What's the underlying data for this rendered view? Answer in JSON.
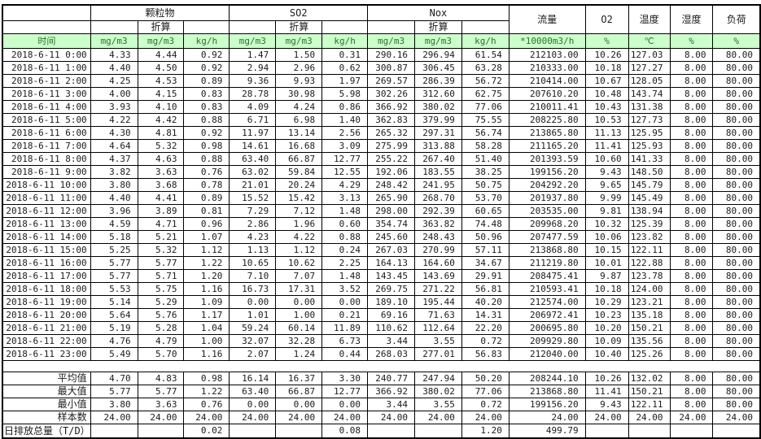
{
  "colors": {
    "header_bg": "#ccffcc",
    "header_text": "#267326",
    "grid": "#000000"
  },
  "header": {
    "time_label": "时间",
    "groups": [
      {
        "label": "颗粒物",
        "sub": "折算"
      },
      {
        "label": "SO2",
        "sub": "折算"
      },
      {
        "label": "Nox",
        "sub": "折算"
      }
    ],
    "singles": [
      {
        "label": "流量"
      },
      {
        "label": "O2"
      },
      {
        "label": "温度"
      },
      {
        "label": "湿度"
      },
      {
        "label": "负荷"
      }
    ],
    "units": [
      "mg/m3",
      "mg/m3",
      "kg/h",
      "mg/m3",
      "mg/m3",
      "kg/h",
      "mg/m3",
      "mg/m3",
      "kg/h",
      "*10000m3/h",
      "%",
      "℃",
      "%",
      "%"
    ]
  },
  "rows": [
    {
      "time": "2018-6-11 0:00",
      "values": [
        "4.33",
        "4.44",
        "0.92",
        "1.47",
        "1.50",
        "0.31",
        "290.16",
        "296.94",
        "61.54",
        "212103.00",
        "10.26",
        "127.03",
        "8.00",
        "80.00"
      ]
    },
    {
      "time": "2018-6-11 1:00",
      "values": [
        "4.40",
        "4.50",
        "0.92",
        "2.94",
        "2.96",
        "0.62",
        "300.87",
        "306.45",
        "63.28",
        "210333.00",
        "10.18",
        "127.27",
        "8.00",
        "80.00"
      ]
    },
    {
      "time": "2018-6-11 2:00",
      "values": [
        "4.25",
        "4.53",
        "0.89",
        "9.36",
        "9.93",
        "1.97",
        "269.57",
        "286.39",
        "56.72",
        "210414.00",
        "10.67",
        "128.05",
        "8.00",
        "80.00"
      ]
    },
    {
      "time": "2018-6-11 3:00",
      "values": [
        "4.00",
        "4.15",
        "0.83",
        "28.78",
        "30.98",
        "5.98",
        "302.26",
        "312.60",
        "62.75",
        "207610.20",
        "10.48",
        "143.74",
        "8.00",
        "80.00"
      ]
    },
    {
      "time": "2018-6-11 4:00",
      "values": [
        "3.93",
        "4.10",
        "0.83",
        "4.09",
        "4.24",
        "0.86",
        "366.92",
        "380.02",
        "77.06",
        "210011.41",
        "10.43",
        "131.38",
        "8.00",
        "80.00"
      ]
    },
    {
      "time": "2018-6-11 5:00",
      "values": [
        "4.22",
        "4.42",
        "0.88",
        "6.71",
        "6.98",
        "1.40",
        "362.83",
        "379.99",
        "75.55",
        "208225.80",
        "10.53",
        "127.73",
        "8.00",
        "80.00"
      ]
    },
    {
      "time": "2018-6-11 6:00",
      "values": [
        "4.30",
        "4.81",
        "0.92",
        "11.97",
        "13.14",
        "2.56",
        "265.32",
        "297.31",
        "56.74",
        "213865.80",
        "11.13",
        "125.95",
        "8.00",
        "80.00"
      ]
    },
    {
      "time": "2018-6-11 7:00",
      "values": [
        "4.64",
        "5.32",
        "0.98",
        "14.61",
        "16.68",
        "3.09",
        "275.99",
        "313.88",
        "58.28",
        "211165.20",
        "11.41",
        "125.93",
        "8.00",
        "80.00"
      ]
    },
    {
      "time": "2018-6-11 8:00",
      "values": [
        "4.37",
        "4.63",
        "0.88",
        "63.40",
        "66.87",
        "12.77",
        "255.22",
        "267.40",
        "51.40",
        "201393.59",
        "10.60",
        "141.33",
        "8.00",
        "80.00"
      ]
    },
    {
      "time": "2018-6-11 9:00",
      "values": [
        "3.82",
        "3.63",
        "0.76",
        "63.02",
        "59.84",
        "12.55",
        "192.06",
        "183.55",
        "38.25",
        "199156.20",
        "9.43",
        "148.50",
        "8.00",
        "80.00"
      ]
    },
    {
      "time": "2018-6-11 10:00",
      "values": [
        "3.80",
        "3.68",
        "0.78",
        "21.01",
        "20.24",
        "4.29",
        "248.42",
        "241.95",
        "50.75",
        "204292.20",
        "9.65",
        "145.79",
        "8.00",
        "80.00"
      ]
    },
    {
      "time": "2018-6-11 11:00",
      "values": [
        "4.40",
        "4.41",
        "0.89",
        "15.52",
        "15.42",
        "3.13",
        "265.90",
        "268.70",
        "53.70",
        "201937.80",
        "9.99",
        "145.49",
        "8.00",
        "80.00"
      ]
    },
    {
      "time": "2018-6-11 12:00",
      "values": [
        "3.96",
        "3.89",
        "0.81",
        "7.29",
        "7.12",
        "1.48",
        "298.00",
        "292.39",
        "60.65",
        "203535.00",
        "9.81",
        "138.94",
        "8.00",
        "80.00"
      ]
    },
    {
      "time": "2018-6-11 13:00",
      "values": [
        "4.59",
        "4.71",
        "0.96",
        "2.86",
        "1.96",
        "0.60",
        "354.74",
        "363.82",
        "74.48",
        "209968.20",
        "10.32",
        "125.39",
        "8.00",
        "80.00"
      ]
    },
    {
      "time": "2018-6-11 14:00",
      "values": [
        "5.18",
        "5.21",
        "1.07",
        "4.23",
        "4.22",
        "0.88",
        "245.60",
        "248.43",
        "50.96",
        "207477.59",
        "10.06",
        "123.82",
        "8.00",
        "80.00"
      ]
    },
    {
      "time": "2018-6-11 15:00",
      "values": [
        "5.25",
        "5.32",
        "1.12",
        "1.13",
        "1.12",
        "0.24",
        "267.03",
        "270.99",
        "57.11",
        "213868.80",
        "10.15",
        "122.11",
        "8.00",
        "80.00"
      ]
    },
    {
      "time": "2018-6-11 16:00",
      "values": [
        "5.77",
        "5.77",
        "1.22",
        "10.65",
        "10.62",
        "2.25",
        "164.13",
        "164.60",
        "34.67",
        "211219.80",
        "10.01",
        "122.88",
        "8.00",
        "80.00"
      ]
    },
    {
      "time": "2018-6-11 17:00",
      "values": [
        "5.77",
        "5.71",
        "1.20",
        "7.10",
        "7.07",
        "1.48",
        "143.45",
        "143.69",
        "29.91",
        "208475.41",
        "9.87",
        "123.78",
        "8.00",
        "80.00"
      ]
    },
    {
      "time": "2018-6-11 18:00",
      "values": [
        "5.53",
        "5.75",
        "1.16",
        "16.73",
        "17.31",
        "3.52",
        "269.75",
        "271.22",
        "56.81",
        "210593.41",
        "10.18",
        "124.00",
        "8.00",
        "80.00"
      ]
    },
    {
      "time": "2018-6-11 19:00",
      "values": [
        "5.14",
        "5.29",
        "1.09",
        "0.00",
        "0.00",
        "0.00",
        "189.10",
        "195.44",
        "40.20",
        "212574.00",
        "10.29",
        "123.21",
        "8.00",
        "80.00"
      ]
    },
    {
      "time": "2018-6-11 20:00",
      "values": [
        "5.64",
        "5.76",
        "1.17",
        "1.01",
        "1.00",
        "0.21",
        "69.16",
        "71.63",
        "14.31",
        "206972.41",
        "10.23",
        "135.18",
        "8.00",
        "80.00"
      ]
    },
    {
      "time": "2018-6-11 21:00",
      "values": [
        "5.19",
        "5.28",
        "1.04",
        "59.24",
        "60.14",
        "11.89",
        "110.62",
        "112.64",
        "22.20",
        "200695.80",
        "10.20",
        "150.21",
        "8.00",
        "80.00"
      ]
    },
    {
      "time": "2018-6-11 22:00",
      "values": [
        "4.76",
        "4.79",
        "1.00",
        "32.07",
        "32.28",
        "6.73",
        "3.44",
        "3.55",
        "0.72",
        "209929.80",
        "10.09",
        "135.56",
        "8.00",
        "80.00"
      ]
    },
    {
      "time": "2018-6-11 23:00",
      "values": [
        "5.49",
        "5.70",
        "1.16",
        "2.07",
        "1.24",
        "0.44",
        "268.03",
        "277.01",
        "56.83",
        "212040.00",
        "10.40",
        "125.26",
        "8.00",
        "80.00"
      ]
    }
  ],
  "summary": [
    {
      "label": "平均值",
      "values": [
        "4.70",
        "4.83",
        "0.98",
        "16.14",
        "16.37",
        "3.30",
        "240.77",
        "247.94",
        "50.20",
        "208244.10",
        "10.26",
        "132.02",
        "8.00",
        "80.00"
      ]
    },
    {
      "label": "最大值",
      "values": [
        "5.77",
        "5.77",
        "1.22",
        "63.40",
        "66.87",
        "12.77",
        "366.92",
        "380.02",
        "77.06",
        "213868.80",
        "11.41",
        "150.21",
        "8.00",
        "80.00"
      ]
    },
    {
      "label": "最小值",
      "values": [
        "3.80",
        "3.63",
        "0.76",
        "0.00",
        "0.00",
        "0.00",
        "3.44",
        "3.55",
        "0.72",
        "199156.20",
        "9.43",
        "122.11",
        "8.00",
        "80.00"
      ]
    },
    {
      "label": "样本数",
      "values": [
        "24.00",
        "24.00",
        "24.00",
        "24.00",
        "24.00",
        "24.00",
        "24.00",
        "24.00",
        "24.00",
        "24.00",
        "24.00",
        "24.00",
        "24.00",
        "24.00"
      ]
    }
  ],
  "total_row": {
    "label": "日排放总量（T/D）",
    "values": [
      "",
      "",
      "0.02",
      "",
      "",
      "0.08",
      "",
      "",
      "1.20",
      "499.79",
      "",
      "",
      "",
      ""
    ]
  }
}
